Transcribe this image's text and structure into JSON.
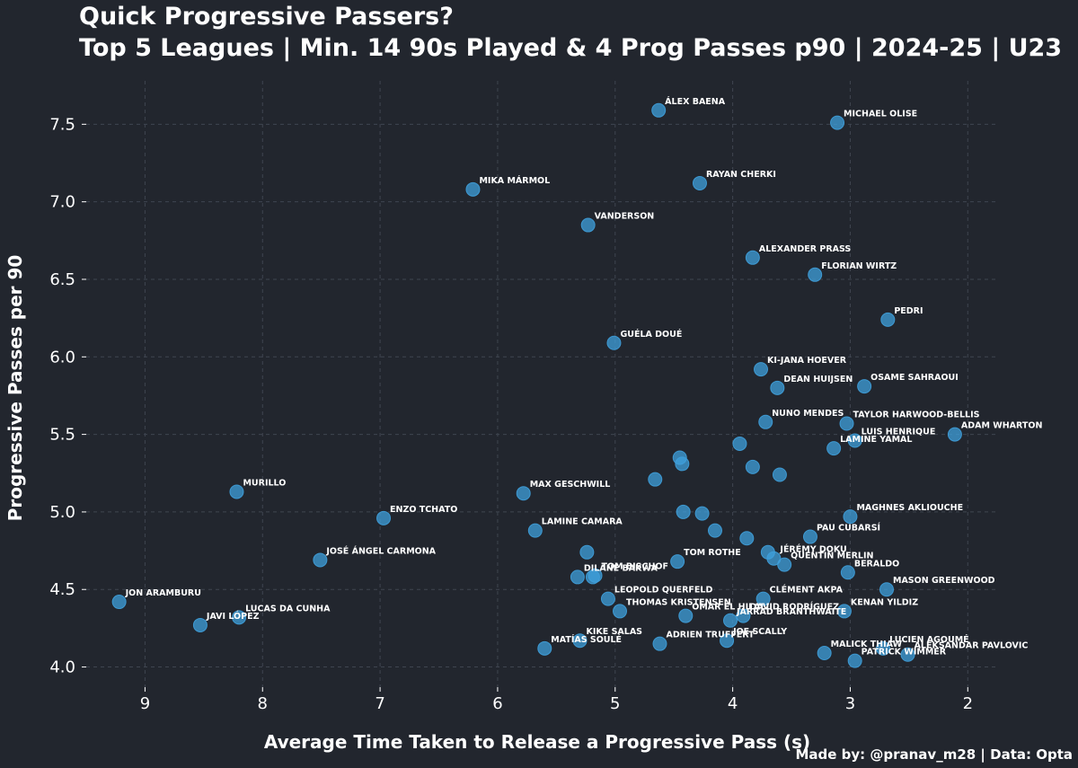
{
  "chart_data": {
    "type": "scatter",
    "title": "Quick Progressive Passers?",
    "subtitle": "Top 5 Leagues | Min. 14 90s Played & 4 Prog Passes p90 | 2024-25 | U23",
    "xlabel": "Average Time Taken to Release a Progressive Pass (s)",
    "ylabel": "Progressive Passes per 90",
    "credit": "Made by: @pranav_m28 | Data: Opta",
    "x_reversed": true,
    "xlim": [
      9.5,
      1.75
    ],
    "ylim": [
      3.87,
      7.78
    ],
    "x_ticks": [
      9,
      8,
      7,
      6,
      5,
      4,
      3,
      2
    ],
    "y_ticks": [
      4.0,
      4.5,
      5.0,
      5.5,
      6.0,
      6.5,
      7.0,
      7.5
    ],
    "grid": true,
    "point_color": "#3fa0dc",
    "background": "#22262e",
    "points": [
      {
        "label": "ÁLEX BAENA",
        "x": 4.63,
        "y": 7.59
      },
      {
        "label": "MICHAEL OLISE",
        "x": 3.11,
        "y": 7.51
      },
      {
        "label": "RAYAN CHERKI",
        "x": 4.28,
        "y": 7.12
      },
      {
        "label": "MIKA MÁRMOL",
        "x": 6.21,
        "y": 7.08
      },
      {
        "label": "VANDERSON",
        "x": 5.23,
        "y": 6.85
      },
      {
        "label": "ALEXANDER PRASS",
        "x": 3.83,
        "y": 6.64
      },
      {
        "label": "FLORIAN WIRTZ",
        "x": 3.3,
        "y": 6.53
      },
      {
        "label": "PEDRI",
        "x": 2.68,
        "y": 6.24
      },
      {
        "label": "GUÉLA DOUÉ",
        "x": 5.01,
        "y": 6.09
      },
      {
        "label": "KI-JANA HOEVER",
        "x": 3.76,
        "y": 5.92
      },
      {
        "label": "OSAME SAHRAOUI",
        "x": 2.88,
        "y": 5.81
      },
      {
        "label": "DEAN HUIJSEN",
        "x": 3.62,
        "y": 5.8
      },
      {
        "label": "NUNO MENDES",
        "x": 3.72,
        "y": 5.58
      },
      {
        "label": "TAYLOR HARWOOD-BELLIS",
        "x": 3.03,
        "y": 5.57
      },
      {
        "label": "ADAM WHARTON",
        "x": 2.11,
        "y": 5.5
      },
      {
        "label": "LUIS HENRIQUE",
        "x": 2.96,
        "y": 5.46
      },
      {
        "label": "LAMINE YAMAL",
        "x": 3.14,
        "y": 5.41
      },
      {
        "label": "",
        "x": 3.94,
        "y": 5.44
      },
      {
        "label": "",
        "x": 4.45,
        "y": 5.35
      },
      {
        "label": "",
        "x": 4.43,
        "y": 5.31
      },
      {
        "label": "",
        "x": 3.83,
        "y": 5.29
      },
      {
        "label": "",
        "x": 3.6,
        "y": 5.24
      },
      {
        "label": "",
        "x": 4.66,
        "y": 5.21
      },
      {
        "label": "MURILLO",
        "x": 8.22,
        "y": 5.13
      },
      {
        "label": "MAX GESCHWILL",
        "x": 5.78,
        "y": 5.12
      },
      {
        "label": "",
        "x": 4.42,
        "y": 5.0
      },
      {
        "label": "",
        "x": 4.26,
        "y": 4.99
      },
      {
        "label": "MAGHNES AKLIOUCHE",
        "x": 3.0,
        "y": 4.97
      },
      {
        "label": "ENZO TCHATO",
        "x": 6.97,
        "y": 4.96
      },
      {
        "label": "",
        "x": 4.15,
        "y": 4.88
      },
      {
        "label": "LAMINE CAMARA",
        "x": 5.68,
        "y": 4.88
      },
      {
        "label": "",
        "x": 3.88,
        "y": 4.83
      },
      {
        "label": "PAU CUBARSÍ",
        "x": 3.34,
        "y": 4.84
      },
      {
        "label": "",
        "x": 5.24,
        "y": 4.74
      },
      {
        "label": "",
        "x": 3.7,
        "y": 4.74
      },
      {
        "label": "JÉRÉMY DOKU",
        "x": 3.65,
        "y": 4.7
      },
      {
        "label": "TOM ROTHE",
        "x": 4.47,
        "y": 4.68
      },
      {
        "label": "JOSÉ ÁNGEL CARMONA",
        "x": 7.51,
        "y": 4.69
      },
      {
        "label": "QUENTIN MERLIN",
        "x": 3.56,
        "y": 4.66
      },
      {
        "label": "BERALDO",
        "x": 3.02,
        "y": 4.61
      },
      {
        "label": "TOM BISCHOF",
        "x": 5.17,
        "y": 4.59
      },
      {
        "label": "DILANE BAKWA",
        "x": 5.32,
        "y": 4.58
      },
      {
        "label": "",
        "x": 5.19,
        "y": 4.58
      },
      {
        "label": "MASON GREENWOOD",
        "x": 2.69,
        "y": 4.5
      },
      {
        "label": "LEOPOLD QUERFELD",
        "x": 5.06,
        "y": 4.44
      },
      {
        "label": "CLÉMENT AKPA",
        "x": 3.74,
        "y": 4.44
      },
      {
        "label": "JON ARAMBURU",
        "x": 9.22,
        "y": 4.42
      },
      {
        "label": "THOMAS KRISTENSEN",
        "x": 4.96,
        "y": 4.36
      },
      {
        "label": "KENAN YILDIZ",
        "x": 3.05,
        "y": 4.36
      },
      {
        "label": "DAVID RODRÍGUEZ",
        "x": 3.91,
        "y": 4.33
      },
      {
        "label": "OMAR EL HILALI",
        "x": 4.4,
        "y": 4.33
      },
      {
        "label": "LUCAS DA CUNHA",
        "x": 8.2,
        "y": 4.32
      },
      {
        "label": "JARRAD BRANTHWAITE",
        "x": 4.02,
        "y": 4.3
      },
      {
        "label": "JAVI LÓPEZ",
        "x": 8.53,
        "y": 4.27
      },
      {
        "label": "KIKE SALAS",
        "x": 5.3,
        "y": 4.17
      },
      {
        "label": "JOE SCALLY",
        "x": 4.05,
        "y": 4.17
      },
      {
        "label": "ADRIEN TRUFFERT",
        "x": 4.62,
        "y": 4.15
      },
      {
        "label": "LUCIEN AGOUMÉ",
        "x": 2.72,
        "y": 4.12
      },
      {
        "label": "MATÍAS SOULÉ",
        "x": 5.6,
        "y": 4.12
      },
      {
        "label": "MALICK THIAW",
        "x": 3.22,
        "y": 4.09
      },
      {
        "label": "ALEKSANDAR PAVLOVIC",
        "x": 2.51,
        "y": 4.08
      },
      {
        "label": "PATRICK WIMMER",
        "x": 2.96,
        "y": 4.04
      }
    ]
  }
}
